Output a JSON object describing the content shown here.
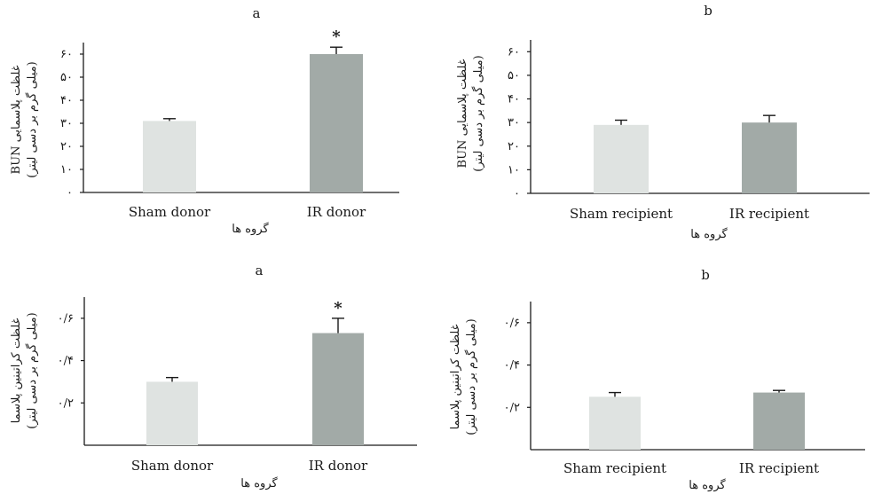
{
  "colors": {
    "sham": "#dfe3e1",
    "ir": "#a2aaa7",
    "axis": "#1a1a1a",
    "error_bar": "#1a1a1a"
  },
  "chart_data": [
    {
      "type": "bar",
      "panel_letter": "a",
      "categories": [
        "Sham donor",
        "IR donor"
      ],
      "values": [
        31,
        60
      ],
      "errors": [
        1,
        3
      ],
      "significance": [
        "",
        "*"
      ],
      "ylim": [
        0,
        65
      ],
      "yticks": [
        0,
        10,
        20,
        30,
        40,
        50,
        60
      ],
      "ytick_labels": [
        "۰",
        "۱۰",
        "۲۰",
        "۳۰",
        "۴۰",
        "۵۰",
        "۶۰"
      ],
      "ylabel": "غلظت پلاسمایی BUN",
      "ylabel_unit": "(میلی گرم بر دسی لیتر)",
      "xlabel": "گروه ها"
    },
    {
      "type": "bar",
      "panel_letter": "b",
      "categories": [
        "Sham recipient",
        "IR recipient"
      ],
      "values": [
        29,
        30
      ],
      "errors": [
        2,
        3
      ],
      "significance": [
        "",
        ""
      ],
      "ylim": [
        0,
        65
      ],
      "yticks": [
        0,
        10,
        20,
        30,
        40,
        50,
        60
      ],
      "ytick_labels": [
        "۰",
        "۱۰",
        "۲۰",
        "۳۰",
        "۴۰",
        "۵۰",
        "۶۰"
      ],
      "ylabel": "غلظت پلاسمایی BUN",
      "ylabel_unit": "(میلی گرم بر دسی لیتر)",
      "xlabel": "گروه ها"
    },
    {
      "type": "bar",
      "panel_letter": "a",
      "categories": [
        "Sham donor",
        "IR donor"
      ],
      "values": [
        0.3,
        0.53
      ],
      "errors": [
        0.02,
        0.07
      ],
      "significance": [
        "",
        "*"
      ],
      "ylim": [
        0,
        0.7
      ],
      "yticks": [
        0.2,
        0.4,
        0.6
      ],
      "ytick_labels": [
        "۰/۲",
        "۰/۴",
        "۰/۶"
      ],
      "ylabel": "غلظت کراتینین پلاسما",
      "ylabel_unit": "(میلی گرم بر دسی لیتر)",
      "xlabel": "گروه ها"
    },
    {
      "type": "bar",
      "panel_letter": "b",
      "categories": [
        "Sham recipient",
        "IR recipient"
      ],
      "values": [
        0.25,
        0.27
      ],
      "errors": [
        0.02,
        0.01
      ],
      "significance": [
        "",
        ""
      ],
      "ylim": [
        0,
        0.7
      ],
      "yticks": [
        0.2,
        0.4,
        0.6
      ],
      "ytick_labels": [
        "۰/۲",
        "۰/۴",
        "۰/۶"
      ],
      "ylabel": "غلظت کراتینین پلاسما",
      "ylabel_unit": "(میلی گرم بر دسی لیتر)",
      "xlabel": "گروه ها"
    }
  ]
}
